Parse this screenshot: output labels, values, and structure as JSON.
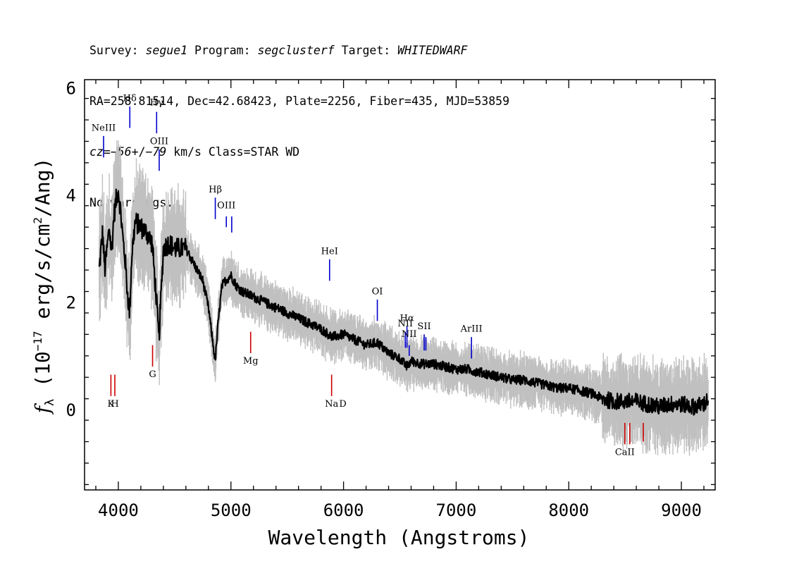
{
  "header": {
    "line1": [
      {
        "t": "Survey: ",
        "i": false
      },
      {
        "t": "segue1",
        "i": true
      },
      {
        "t": " Program: ",
        "i": false
      },
      {
        "t": "segclusterf",
        "i": true
      },
      {
        "t": " Target: ",
        "i": false
      },
      {
        "t": "WHITEDWARF",
        "i": true
      }
    ],
    "line2": "RA=258.81514, Dec=42.68423, Plate=2256, Fiber=435, MJD=53859",
    "line3": [
      {
        "t": "cz=",
        "i": true
      },
      {
        "t": "−56",
        "i": true
      },
      {
        "t": "+/",
        "i": false
      },
      {
        "t": "−79",
        "i": true
      },
      {
        "t": " km/s Class=STAR WD",
        "i": false
      }
    ],
    "line4": "No warnings."
  },
  "chart_data": {
    "type": "line",
    "xlabel": "Wavelength (Angstroms)",
    "ylabel_parts": {
      "sym": "f",
      "sub": "λ",
      "pre": " (10",
      "exp1": "−17",
      "mid": " erg/s/cm",
      "exp2": "2",
      "post": "/Ang)"
    },
    "xlim": [
      3700,
      9300
    ],
    "ylim": [
      -1.5,
      6.15
    ],
    "xticks": [
      4000,
      5000,
      6000,
      7000,
      8000,
      9000
    ],
    "yticks": [
      0,
      2,
      4,
      6
    ],
    "grid": false,
    "colors": {
      "spectrum": "#000000",
      "error": "#c0c0c0",
      "emission": "#0000cc",
      "absorption": "#cc0000"
    },
    "series": [
      {
        "x": [
          3830,
          3860,
          3880,
          3900,
          3920,
          3940,
          3960,
          3980,
          4000,
          4020,
          4040,
          4060,
          4080,
          4100,
          4120,
          4150,
          4200,
          4250,
          4300,
          4340,
          4360,
          4400,
          4450,
          4500,
          4550,
          4600,
          4650,
          4700,
          4750,
          4800,
          4830,
          4860,
          4890,
          4920,
          4950,
          5000,
          5050,
          5100,
          5200,
          5300,
          5400,
          5500,
          5600,
          5700,
          5800,
          5900,
          6000,
          6100,
          6200,
          6300,
          6400,
          6500,
          6560,
          6600,
          6700,
          6800,
          6900,
          7000,
          7100,
          7200,
          7300,
          7400,
          7500,
          7600,
          7700,
          7800,
          7900,
          8000,
          8100,
          8200,
          8300,
          8400,
          8500,
          8600,
          8700,
          8800,
          8900,
          9000,
          9100,
          9200,
          9240
        ],
        "y": [
          2.6,
          3.3,
          2.6,
          3.0,
          3.4,
          2.9,
          3.6,
          3.9,
          4.1,
          3.7,
          3.2,
          2.8,
          2.2,
          1.8,
          2.9,
          3.5,
          3.4,
          3.3,
          3.1,
          2.0,
          1.3,
          3.0,
          3.1,
          3.0,
          3.0,
          3.0,
          2.8,
          2.6,
          2.4,
          1.9,
          1.4,
          0.9,
          1.7,
          2.3,
          2.4,
          2.5,
          2.3,
          2.2,
          2.1,
          2.0,
          1.9,
          1.8,
          1.7,
          1.6,
          1.5,
          1.35,
          1.4,
          1.3,
          1.2,
          1.25,
          1.05,
          0.95,
          0.8,
          0.9,
          0.85,
          0.85,
          0.8,
          0.75,
          0.75,
          0.7,
          0.65,
          0.6,
          0.55,
          0.55,
          0.5,
          0.45,
          0.4,
          0.4,
          0.35,
          0.3,
          0.2,
          0.15,
          0.15,
          0.15,
          0.1,
          0.05,
          0.1,
          0.1,
          0.05,
          0.1,
          0.2
        ]
      }
    ],
    "emission_lines": [
      {
        "label": "NeIII",
        "x": 3869,
        "y1": 4.7,
        "y2": 5.1,
        "ly": 5.2
      },
      {
        "label": "Hδ",
        "x": 4102,
        "y1": 5.25,
        "y2": 5.65,
        "ly": 5.75
      },
      {
        "label": "Hγ",
        "x": 4340,
        "y1": 5.15,
        "y2": 5.55,
        "ly": 5.67
      },
      {
        "label": "OIII",
        "x": 4363,
        "y1": 4.45,
        "y2": 4.85,
        "ly": 4.95
      },
      {
        "label": "Hβ",
        "x": 4861,
        "y1": 3.55,
        "y2": 3.95,
        "ly": 4.05
      },
      {
        "label": "OIII",
        "x": 4959,
        "y1": 3.4,
        "y2": 3.6,
        "ly": 3.75
      },
      {
        "label": "",
        "x": 5007,
        "y1": 3.3,
        "y2": 3.6,
        "ly": 3.75
      },
      {
        "label": "HeI",
        "x": 5876,
        "y1": 2.4,
        "y2": 2.8,
        "ly": 2.9
      },
      {
        "label": "OI",
        "x": 6300,
        "y1": 1.65,
        "y2": 2.05,
        "ly": 2.15
      },
      {
        "label": "NII",
        "x": 6548,
        "y1": 1.15,
        "y2": 1.45,
        "ly": 1.55
      },
      {
        "label": "Hα",
        "x": 6563,
        "y1": 1.15,
        "y2": 1.55,
        "ly": 1.65
      },
      {
        "label": "NII",
        "x": 6583,
        "y1": 1.0,
        "y2": 1.2,
        "ly": 1.35
      },
      {
        "label": "SII",
        "x": 6716,
        "y1": 1.1,
        "y2": 1.4,
        "ly": 1.5
      },
      {
        "label": "",
        "x": 6731,
        "y1": 1.1,
        "y2": 1.35,
        "ly": 1.5
      },
      {
        "label": "ArIII",
        "x": 7136,
        "y1": 0.95,
        "y2": 1.35,
        "ly": 1.45
      }
    ],
    "absorption_lines": [
      {
        "label": "K",
        "x": 3934,
        "y1": 0.25,
        "y2": 0.65,
        "ly": 0.05
      },
      {
        "label": "H",
        "x": 3969,
        "y1": 0.25,
        "y2": 0.65,
        "ly": 0.05
      },
      {
        "label": "G",
        "x": 4304,
        "y1": 0.8,
        "y2": 1.2,
        "ly": 0.6
      },
      {
        "label": "Mg",
        "x": 5175,
        "y1": 1.05,
        "y2": 1.45,
        "ly": 0.85
      },
      {
        "label": "Na",
        "x": 5894,
        "y1": 0.25,
        "y2": 0.65,
        "ly": 0.05
      },
      {
        "label": "D",
        "x": 5994,
        "y1": 0.25,
        "y2": 0.25,
        "ly": 0.05
      },
      {
        "label": "CaII",
        "x": 8498,
        "y1": -0.65,
        "y2": -0.25,
        "ly": -0.85
      },
      {
        "label": "",
        "x": 8542,
        "y1": -0.65,
        "y2": -0.25,
        "ly": -0.85
      },
      {
        "label": "",
        "x": 8662,
        "y1": -0.6,
        "y2": -0.25,
        "ly": -0.85
      }
    ]
  }
}
